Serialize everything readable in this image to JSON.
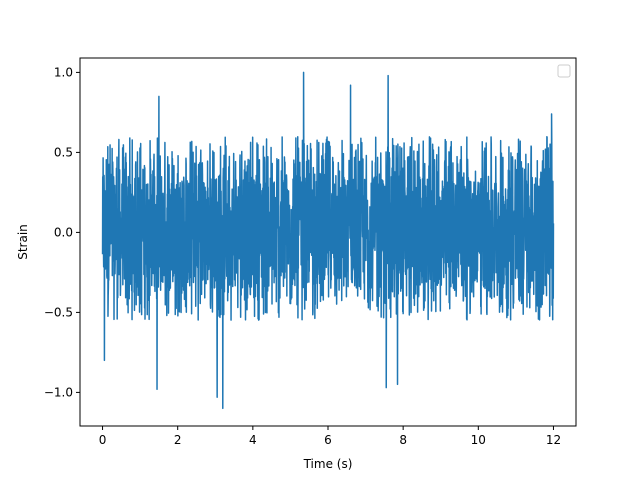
{
  "chart_data": {
    "type": "line",
    "title": "",
    "xlabel": "Time (s)",
    "ylabel": "Strain",
    "xlim": [
      -0.6,
      12.6
    ],
    "ylim": [
      -1.21,
      1.09
    ],
    "x_ticks": [
      0,
      2,
      4,
      6,
      8,
      10,
      12
    ],
    "x_tick_labels": [
      "0",
      "2",
      "4",
      "6",
      "8",
      "10",
      "12"
    ],
    "y_ticks": [
      -1.0,
      -0.5,
      0.0,
      0.5,
      1.0
    ],
    "y_tick_labels": [
      "−1.0",
      "−0.5",
      "0.0",
      "0.5",
      "1.0"
    ],
    "grid": false,
    "legend": {
      "placement": "top-right",
      "entries": []
    },
    "series": [
      {
        "color": "#1f77b4",
        "x_range": [
          0,
          12
        ],
        "typical_band": [
          -0.55,
          0.6
        ],
        "notable_peaks": [
          {
            "x": 1.5,
            "y": 0.85
          },
          {
            "x": 5.35,
            "y": 1.0
          },
          {
            "x": 6.6,
            "y": 0.92
          },
          {
            "x": 7.6,
            "y": 0.98
          },
          {
            "x": 11.95,
            "y": 0.74
          }
        ],
        "notable_troughs": [
          {
            "x": 0.05,
            "y": -0.8
          },
          {
            "x": 1.45,
            "y": -0.98
          },
          {
            "x": 3.05,
            "y": -1.03
          },
          {
            "x": 3.2,
            "y": -1.1
          },
          {
            "x": 7.55,
            "y": -0.97
          },
          {
            "x": 7.85,
            "y": -0.95
          }
        ]
      }
    ]
  }
}
